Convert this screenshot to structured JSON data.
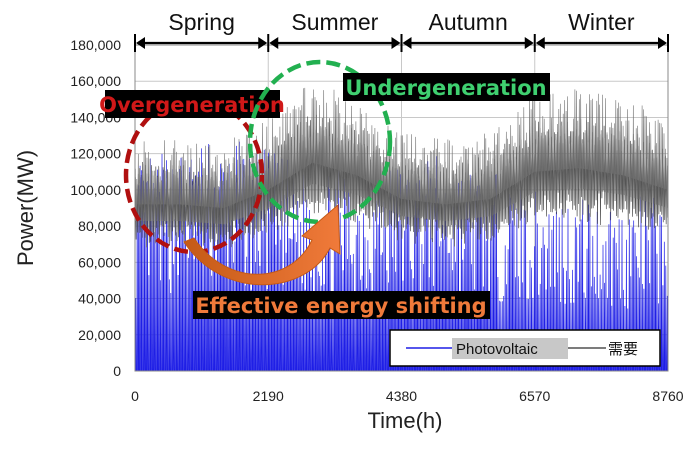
{
  "chart_data": {
    "type": "line",
    "title": "",
    "xlabel": "Time(h)",
    "ylabel": "Power(MW)",
    "xlim": [
      0,
      8760
    ],
    "ylim": [
      0,
      180000
    ],
    "x_ticks": [
      0,
      2190,
      4380,
      6570,
      8760
    ],
    "y_ticks": [
      0,
      20000,
      40000,
      60000,
      80000,
      100000,
      120000,
      140000,
      160000,
      180000
    ],
    "y_tick_labels": [
      "0",
      "20,000",
      "40,000",
      "60,000",
      "80,000",
      "100,000",
      "120,000",
      "140,000",
      "160,000",
      "180,000"
    ],
    "grid": true,
    "legend_position": "bottom-right",
    "seasons": [
      {
        "label": "Spring",
        "start": 0,
        "end": 2190
      },
      {
        "label": "Summer",
        "start": 2190,
        "end": 4380
      },
      {
        "label": "Autumn",
        "start": 4380,
        "end": 6570
      },
      {
        "label": "Winter",
        "start": 6570,
        "end": 8760
      }
    ],
    "series": [
      {
        "name": "Photovoltaic",
        "color": "#1f1fe6",
        "approx_daily_peak_envelope": {
          "x": [
            0,
            730,
            1460,
            2190,
            2920,
            3650,
            4380,
            5110,
            5840,
            6570,
            7300,
            8030,
            8760
          ],
          "y": [
            115000,
            125000,
            130000,
            122000,
            110000,
            112000,
            118000,
            120000,
            110000,
            102000,
            98000,
            95000,
            100000
          ]
        },
        "night_min": 0
      },
      {
        "name": "需要",
        "color": "#505050",
        "approx_mean_envelope": {
          "x": [
            0,
            730,
            1460,
            2190,
            2920,
            3650,
            4380,
            5110,
            5840,
            6570,
            7300,
            8030,
            8760
          ],
          "y": [
            92000,
            92000,
            90000,
            100000,
            115000,
            108000,
            95000,
            92000,
            95000,
            110000,
            112000,
            108000,
            100000
          ]
        },
        "approx_peak": 165000
      }
    ],
    "annotations": [
      {
        "text": "Overgeneration",
        "color": "#d01818",
        "style": "dashed-ellipse",
        "region": "spring"
      },
      {
        "text": "Undergeneration",
        "color": "#2ec060",
        "style": "dashed-ellipse",
        "region": "summer"
      },
      {
        "text": "Effective energy shifting",
        "color": "#e07a3a",
        "style": "curved-arrow",
        "from": "spring",
        "to": "summer"
      }
    ]
  }
}
